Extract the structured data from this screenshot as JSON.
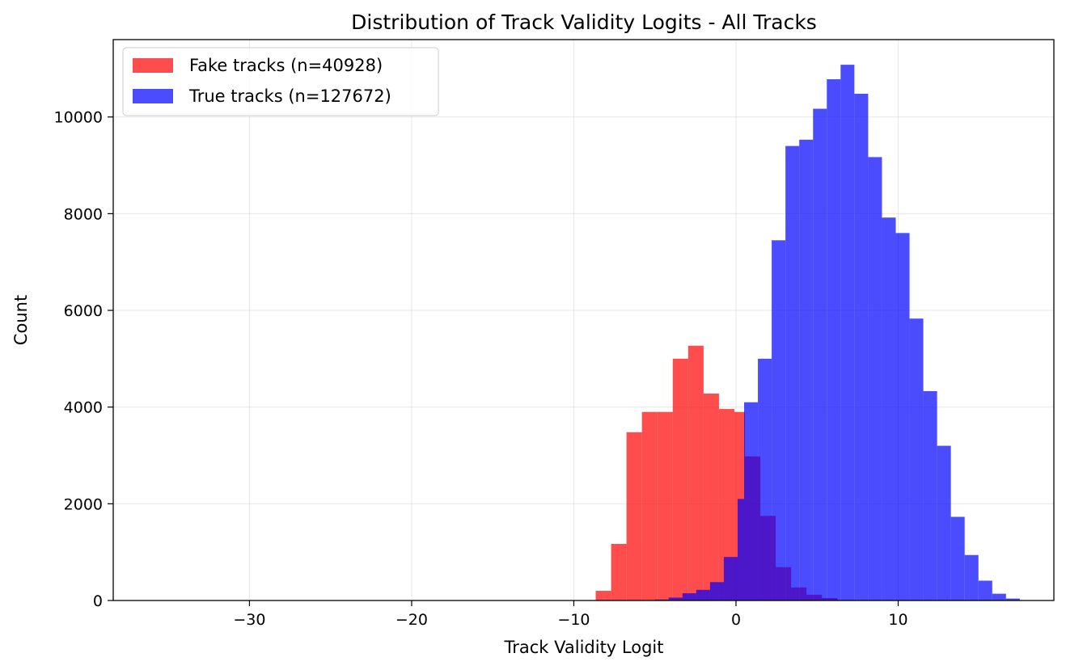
{
  "chart_data": {
    "type": "histogram",
    "title": "Distribution of Track Validity Logits - All Tracks",
    "xlabel": "Track Validity Logit",
    "ylabel": "Count",
    "xlim": [
      -38.4,
      19.6
    ],
    "ylim": [
      0,
      11600
    ],
    "xticks": [
      -30,
      -20,
      -10,
      0,
      10
    ],
    "xtick_labels": [
      "−30",
      "−20",
      "−10",
      "0",
      "10"
    ],
    "yticks": [
      0,
      2000,
      4000,
      6000,
      8000,
      10000
    ],
    "ytick_labels": [
      "0",
      "2000",
      "4000",
      "6000",
      "8000",
      "10000"
    ],
    "grid": true,
    "legend_position": "upper-left",
    "series": [
      {
        "name": "Fake tracks (n=40928)",
        "color": "#ff0000",
        "opacity": 0.7,
        "bins": [
          {
            "x0": -8.65,
            "x1": -7.7,
            "count": 200
          },
          {
            "x0": -7.7,
            "x1": -6.75,
            "count": 1170
          },
          {
            "x0": -6.75,
            "x1": -5.8,
            "count": 3480
          },
          {
            "x0": -5.8,
            "x1": -4.85,
            "count": 3900
          },
          {
            "x0": -4.85,
            "x1": -3.9,
            "count": 3900
          },
          {
            "x0": -3.9,
            "x1": -2.95,
            "count": 5000
          },
          {
            "x0": -2.95,
            "x1": -2.0,
            "count": 5270
          },
          {
            "x0": -2.0,
            "x1": -1.05,
            "count": 4280
          },
          {
            "x0": -1.05,
            "x1": -0.1,
            "count": 3960
          },
          {
            "x0": -0.1,
            "x1": 0.55,
            "count": 3900
          },
          {
            "x0": 0.55,
            "x1": 1.5,
            "count": 2980
          },
          {
            "x0": 1.5,
            "x1": 2.45,
            "count": 1750
          },
          {
            "x0": 2.45,
            "x1": 3.4,
            "count": 690
          },
          {
            "x0": 3.4,
            "x1": 4.35,
            "count": 270
          },
          {
            "x0": 4.35,
            "x1": 5.3,
            "count": 120
          },
          {
            "x0": 5.3,
            "x1": 6.25,
            "count": 50
          }
        ]
      },
      {
        "name": "True tracks (n=127672)",
        "color": "#0000ff",
        "opacity": 0.7,
        "bins": [
          {
            "x0": -5.0,
            "x1": -4.15,
            "count": 20
          },
          {
            "x0": -4.15,
            "x1": -3.3,
            "count": 60
          },
          {
            "x0": -3.3,
            "x1": -2.45,
            "count": 150
          },
          {
            "x0": -2.45,
            "x1": -1.6,
            "count": 220
          },
          {
            "x0": -1.6,
            "x1": -0.75,
            "count": 380
          },
          {
            "x0": -0.75,
            "x1": 0.1,
            "count": 900
          },
          {
            "x0": 0.1,
            "x1": 0.5,
            "count": 2100
          },
          {
            "x0": 0.5,
            "x1": 1.35,
            "count": 4100
          },
          {
            "x0": 1.35,
            "x1": 2.2,
            "count": 5000
          },
          {
            "x0": 2.2,
            "x1": 3.05,
            "count": 7450
          },
          {
            "x0": 3.05,
            "x1": 3.9,
            "count": 9400
          },
          {
            "x0": 3.9,
            "x1": 4.75,
            "count": 9530
          },
          {
            "x0": 4.75,
            "x1": 5.6,
            "count": 10170
          },
          {
            "x0": 5.6,
            "x1": 6.45,
            "count": 10780
          },
          {
            "x0": 6.45,
            "x1": 7.3,
            "count": 11080
          },
          {
            "x0": 7.3,
            "x1": 8.15,
            "count": 10480
          },
          {
            "x0": 8.15,
            "x1": 9.0,
            "count": 9170
          },
          {
            "x0": 9.0,
            "x1": 9.85,
            "count": 7920
          },
          {
            "x0": 9.85,
            "x1": 10.7,
            "count": 7600
          },
          {
            "x0": 10.7,
            "x1": 11.55,
            "count": 5830
          },
          {
            "x0": 11.55,
            "x1": 12.4,
            "count": 4330
          },
          {
            "x0": 12.4,
            "x1": 13.25,
            "count": 3200
          },
          {
            "x0": 13.25,
            "x1": 14.1,
            "count": 1730
          },
          {
            "x0": 14.1,
            "x1": 14.95,
            "count": 940
          },
          {
            "x0": 14.95,
            "x1": 15.8,
            "count": 410
          },
          {
            "x0": 15.8,
            "x1": 16.65,
            "count": 140
          },
          {
            "x0": 16.65,
            "x1": 17.5,
            "count": 40
          }
        ]
      }
    ]
  }
}
